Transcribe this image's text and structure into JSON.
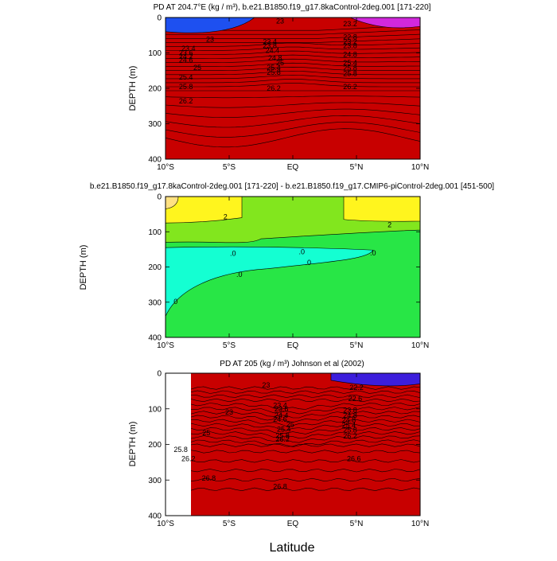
{
  "figure": {
    "x_label": "Latitude"
  },
  "panels": [
    {
      "title": "PD AT 204.7°E (kg / m³), b.e21.B1850.f19_g17.8kaControl-2deg.001 [171-220]",
      "ylabel": "DEPTH (m)",
      "x_ticks": [
        "10°S",
        "5°S",
        "EQ",
        "5°N",
        "10°N"
      ],
      "y_ticks": [
        "0",
        "100",
        "200",
        "300",
        "400"
      ],
      "contour_labels": [
        {
          "text": "23",
          "lat": -1.0,
          "depth": 10
        },
        {
          "text": "23",
          "lat": -6.5,
          "depth": 62
        },
        {
          "text": "23.2",
          "lat": 4.5,
          "depth": 18
        },
        {
          "text": "23.4",
          "lat": -8.2,
          "depth": 88
        },
        {
          "text": "23.4",
          "lat": -1.8,
          "depth": 68
        },
        {
          "text": "23.6",
          "lat": -8.4,
          "depth": 100
        },
        {
          "text": "23.8",
          "lat": -1.8,
          "depth": 80
        },
        {
          "text": "24.2",
          "lat": -8.4,
          "depth": 110
        },
        {
          "text": "24.4",
          "lat": -1.6,
          "depth": 93
        },
        {
          "text": "24.6",
          "lat": -8.4,
          "depth": 120
        },
        {
          "text": "24.8",
          "lat": -1.4,
          "depth": 115
        },
        {
          "text": "25",
          "lat": -7.5,
          "depth": 142
        },
        {
          "text": "25",
          "lat": -1.0,
          "depth": 128
        },
        {
          "text": "25.4",
          "lat": -8.4,
          "depth": 168
        },
        {
          "text": "25.4",
          "lat": -1.5,
          "depth": 142
        },
        {
          "text": "25.8",
          "lat": -8.4,
          "depth": 196
        },
        {
          "text": "25.8",
          "lat": -1.5,
          "depth": 155
        },
        {
          "text": "26.2",
          "lat": -8.4,
          "depth": 236
        },
        {
          "text": "26.2",
          "lat": -1.5,
          "depth": 200
        },
        {
          "text": "22.8",
          "lat": 4.5,
          "depth": 55
        },
        {
          "text": "23.2",
          "lat": 4.5,
          "depth": 68
        },
        {
          "text": "23.8",
          "lat": 4.5,
          "depth": 80
        },
        {
          "text": "24.8",
          "lat": 4.5,
          "depth": 105
        },
        {
          "text": "25.4",
          "lat": 4.5,
          "depth": 128
        },
        {
          "text": "25.8",
          "lat": 4.5,
          "depth": 143
        },
        {
          "text": "25.8",
          "lat": 4.5,
          "depth": 158
        },
        {
          "text": "26.2",
          "lat": 4.5,
          "depth": 196
        }
      ]
    },
    {
      "title": "b.e21.B1850.f19_g17.8kaControl-2deg.001 [171-220] - b.e21.B1850.f19_g17.CMIP6-piControl-2deg.001 [451-500]",
      "ylabel": "DEPTH (m)",
      "x_ticks": [
        "10°S",
        "5°S",
        "EQ",
        "5°N",
        "10°N"
      ],
      "y_ticks": [
        "0",
        "100",
        "200",
        "300",
        "400"
      ],
      "contour_labels": [
        {
          "text": "2",
          "lat": -5.3,
          "depth": 58
        },
        {
          "text": "2",
          "lat": 7.6,
          "depth": 80
        },
        {
          "text": ".0",
          "lat": -4.7,
          "depth": 162
        },
        {
          "text": ".0",
          "lat": 0.7,
          "depth": 157
        },
        {
          "text": ".0",
          "lat": 1.2,
          "depth": 188
        },
        {
          "text": ".0",
          "lat": 6.3,
          "depth": 160
        },
        {
          "text": ".0",
          "lat": -4.2,
          "depth": 222
        },
        {
          "text": "0",
          "lat": -9.2,
          "depth": 298
        }
      ]
    },
    {
      "title": "PD AT 205 (kg / m³) Johnson et al (2002)",
      "ylabel": "DEPTH (m)",
      "x_ticks": [
        "10°S",
        "5°S",
        "EQ",
        "5°N",
        "10°N"
      ],
      "y_ticks": [
        "0",
        "100",
        "200",
        "300",
        "400"
      ],
      "contour_labels": [
        {
          "text": "23",
          "lat": -2.1,
          "depth": 34
        },
        {
          "text": "23",
          "lat": -5.0,
          "depth": 110
        },
        {
          "text": "22.2",
          "lat": 5.0,
          "depth": 40
        },
        {
          "text": "22.6",
          "lat": 4.9,
          "depth": 72
        },
        {
          "text": "23.4",
          "lat": -1.0,
          "depth": 90
        },
        {
          "text": "23.6",
          "lat": -0.9,
          "depth": 100
        },
        {
          "text": "23.8",
          "lat": 4.5,
          "depth": 104
        },
        {
          "text": "24.4",
          "lat": -0.9,
          "depth": 118
        },
        {
          "text": "24.8",
          "lat": 4.5,
          "depth": 118
        },
        {
          "text": "24.6",
          "lat": -1.0,
          "depth": 130
        },
        {
          "text": "25",
          "lat": -0.2,
          "depth": 144
        },
        {
          "text": "24.8",
          "lat": 4.4,
          "depth": 132
        },
        {
          "text": "25.4",
          "lat": -0.7,
          "depth": 158
        },
        {
          "text": "25.4",
          "lat": 4.4,
          "depth": 146
        },
        {
          "text": "25.8",
          "lat": -0.8,
          "depth": 175
        },
        {
          "text": "25.8",
          "lat": 4.5,
          "depth": 160
        },
        {
          "text": "26.2",
          "lat": -0.8,
          "depth": 185
        },
        {
          "text": "26.2",
          "lat": 4.5,
          "depth": 176
        },
        {
          "text": "25",
          "lat": -6.8,
          "depth": 168
        },
        {
          "text": "25.8",
          "lat": -8.8,
          "depth": 215
        },
        {
          "text": "26.2",
          "lat": -8.2,
          "depth": 240
        },
        {
          "text": "26.6",
          "lat": 4.8,
          "depth": 240
        },
        {
          "text": "26.8",
          "lat": -1.0,
          "depth": 318
        },
        {
          "text": "26.8",
          "lat": -6.6,
          "depth": 295
        }
      ]
    }
  ],
  "chart_data": [
    {
      "type": "heatmap",
      "title": "PD AT 204.7°E (kg / m³), b.e21.B1850.f19_g17.8kaControl-2deg.001 [171-220]",
      "xlabel": "Latitude",
      "ylabel": "DEPTH (m)",
      "xlim": [
        -10,
        10
      ],
      "ylim": [
        400,
        0
      ],
      "levels": [
        22.0,
        22.4,
        22.8,
        23.0,
        23.2,
        23.4,
        23.6,
        23.8,
        24.0,
        24.2,
        24.4,
        24.6,
        24.8,
        25.0,
        25.2,
        25.4,
        25.6,
        25.8,
        26.0,
        26.2,
        26.4,
        26.6,
        26.8
      ],
      "colors": {
        "low": "#c020c0",
        "mid": "#40e0a0",
        "high": "#d00000"
      }
    },
    {
      "type": "heatmap",
      "title": "b.e21.B1850.f19_g17.8kaControl-2deg.001 [171-220] - b.e21.B1850.f19_g17.CMIP6-piControl-2deg.001 [451-500]",
      "xlabel": "Latitude",
      "ylabel": "DEPTH (m)",
      "xlim": [
        -10,
        10
      ],
      "ylim": [
        400,
        0
      ],
      "levels": [
        -0.2,
        0.0,
        0.2
      ],
      "colors": {
        "negative": "#00ffd0",
        "near_zero": "#28e640",
        "positive_small": "#80e020",
        "positive": "#ffff20",
        "positive_large": "#ffe080"
      }
    },
    {
      "type": "heatmap",
      "title": "PD AT 205 (kg / m³) Johnson et al (2002)",
      "xlabel": "Latitude",
      "ylabel": "DEPTH (m)",
      "xlim": [
        -10,
        10
      ],
      "ylim": [
        400,
        0
      ],
      "data_lat_range": [
        -8,
        10
      ],
      "levels": [
        22.2,
        22.6,
        23.0,
        23.4,
        23.6,
        23.8,
        24.4,
        24.6,
        24.8,
        25.0,
        25.4,
        25.8,
        26.2,
        26.6,
        26.8
      ],
      "colors": {
        "low": "#1010d0",
        "mid": "#40e0a0",
        "high": "#c00000"
      }
    }
  ]
}
